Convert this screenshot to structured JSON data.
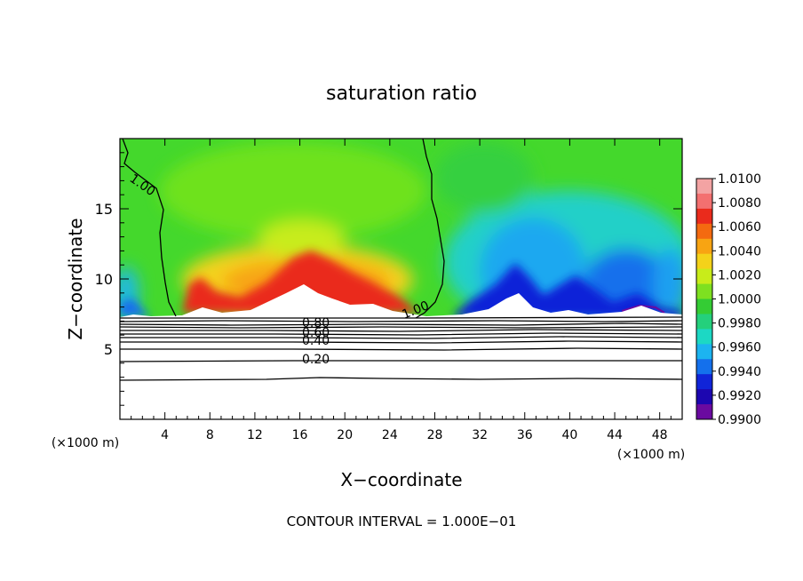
{
  "chart_data": {
    "type": "heatmap",
    "title": "saturation ratio",
    "xlabel": "X−coordinate",
    "ylabel": "Z−coordinate",
    "x_unit_left": "(×1000 m)",
    "x_unit_right": "(×1000 m)",
    "footer": "CONTOUR INTERVAL = 1.000E−01",
    "xlim": [
      0,
      50
    ],
    "ylim": [
      0,
      20
    ],
    "x_ticks": [
      4,
      8,
      12,
      16,
      20,
      24,
      28,
      32,
      36,
      40,
      44,
      48
    ],
    "y_ticks": [
      5,
      10,
      15
    ],
    "x_tick_labels": [
      "4",
      "8",
      "12",
      "16",
      "20",
      "24",
      "28",
      "32",
      "36",
      "40",
      "44",
      "48"
    ],
    "y_tick_labels": [
      "5",
      "10",
      "15"
    ],
    "colorbar": {
      "labels": [
        "1.0100",
        "1.0080",
        "1.0060",
        "1.0040",
        "1.0020",
        "1.0000",
        "0.9980",
        "0.9960",
        "0.9940",
        "0.9920",
        "0.9900"
      ],
      "colors": [
        "#f3a3a3",
        "#f37070",
        "#ea2b1c",
        "#f46a10",
        "#f8a412",
        "#f4d21a",
        "#c8ec1a",
        "#7ee020",
        "#34cc34",
        "#24d07c",
        "#1cd8c4",
        "#1cb4f0",
        "#1470ec",
        "#1024d8",
        "#1c06b0",
        "#6a0aa0"
      ]
    },
    "cloud_base_z": 7.3,
    "contour_lines": [
      {
        "label": "1.00"
      },
      {
        "label": "0.80"
      },
      {
        "label": "0.60"
      },
      {
        "label": "0.40"
      },
      {
        "label": "0.20"
      }
    ],
    "lower_contour_levels_z": [
      7.1,
      6.9,
      6.7,
      6.5,
      6.25,
      6.0,
      5.7,
      5.3,
      4.9,
      4.2,
      2.9
    ]
  }
}
